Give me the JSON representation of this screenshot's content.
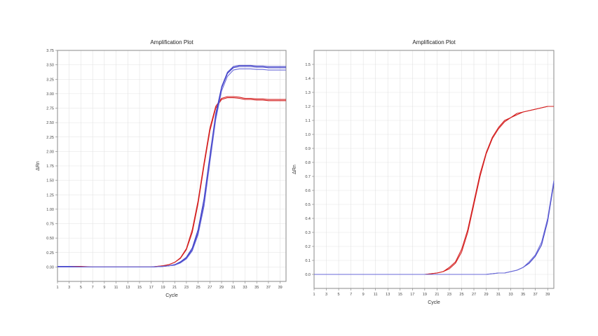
{
  "chart_data": [
    {
      "type": "line",
      "title": "Amplification Plot",
      "xlabel": "Cycle",
      "ylabel": "ΔRn",
      "xlim": [
        1,
        40
      ],
      "ylim": [
        -0.25,
        3.75
      ],
      "grid": true,
      "x_ticks": [
        "1",
        "3",
        "5",
        "7",
        "9",
        "11",
        "13",
        "15",
        "17",
        "19",
        "21",
        "23",
        "25",
        "27",
        "29",
        "31",
        "33",
        "35",
        "37",
        "39"
      ],
      "y_ticks": [
        "0.00",
        "0.25",
        "0.50",
        "0.75",
        "1.00",
        "1.25",
        "1.50",
        "1.75",
        "2.00",
        "2.25",
        "2.50",
        "2.75",
        "3.00",
        "3.25",
        "3.50",
        "3.75"
      ],
      "series": [
        {
          "color": "#d42020",
          "x": [
            1,
            3,
            5,
            7,
            9,
            11,
            13,
            15,
            17,
            19,
            20,
            21,
            22,
            23,
            24,
            25,
            26,
            27,
            28,
            29,
            30,
            31,
            32,
            33,
            34,
            35,
            36,
            37,
            38,
            39,
            40
          ],
          "values": [
            0.0,
            0.0,
            0.0,
            0.0,
            0.0,
            0.0,
            0.0,
            0.0,
            0.0,
            0.02,
            0.04,
            0.08,
            0.15,
            0.3,
            0.6,
            1.1,
            1.75,
            2.35,
            2.75,
            2.9,
            2.93,
            2.93,
            2.92,
            2.9,
            2.9,
            2.89,
            2.89,
            2.88,
            2.88,
            2.88,
            2.88
          ]
        },
        {
          "color": "#d42020",
          "x": [
            1,
            3,
            5,
            7,
            9,
            11,
            13,
            15,
            17,
            19,
            20,
            21,
            22,
            23,
            24,
            25,
            26,
            27,
            28,
            29,
            30,
            31,
            32,
            33,
            34,
            35,
            36,
            37,
            38,
            39,
            40
          ],
          "values": [
            0.01,
            0.01,
            0.01,
            0.0,
            0.0,
            0.0,
            0.0,
            0.0,
            0.0,
            0.02,
            0.04,
            0.08,
            0.16,
            0.32,
            0.65,
            1.15,
            1.8,
            2.4,
            2.78,
            2.92,
            2.95,
            2.95,
            2.94,
            2.92,
            2.92,
            2.91,
            2.91,
            2.9,
            2.9,
            2.9,
            2.9
          ]
        },
        {
          "color": "#4040c8",
          "x": [
            1,
            3,
            5,
            7,
            9,
            11,
            13,
            15,
            17,
            19,
            20,
            21,
            22,
            23,
            24,
            25,
            26,
            27,
            28,
            29,
            30,
            31,
            32,
            33,
            34,
            35,
            36,
            37,
            38,
            39,
            40
          ],
          "values": [
            0.0,
            0.0,
            0.0,
            0.0,
            0.0,
            0.0,
            0.0,
            0.0,
            0.0,
            0.01,
            0.02,
            0.04,
            0.08,
            0.15,
            0.3,
            0.6,
            1.1,
            1.85,
            2.6,
            3.1,
            3.35,
            3.45,
            3.47,
            3.47,
            3.47,
            3.46,
            3.46,
            3.45,
            3.45,
            3.45,
            3.45
          ]
        },
        {
          "color": "#4040c8",
          "x": [
            1,
            3,
            5,
            7,
            9,
            11,
            13,
            15,
            17,
            19,
            20,
            21,
            22,
            23,
            24,
            25,
            26,
            27,
            28,
            29,
            30,
            31,
            32,
            33,
            34,
            35,
            36,
            37,
            38,
            39,
            40
          ],
          "values": [
            0.01,
            0.01,
            0.0,
            0.0,
            0.0,
            0.0,
            0.0,
            0.0,
            0.0,
            0.01,
            0.02,
            0.04,
            0.09,
            0.17,
            0.33,
            0.65,
            1.18,
            1.92,
            2.65,
            3.12,
            3.37,
            3.47,
            3.49,
            3.49,
            3.49,
            3.48,
            3.48,
            3.47,
            3.47,
            3.47,
            3.47
          ]
        },
        {
          "color": "#6a6ad8",
          "x": [
            1,
            3,
            5,
            7,
            9,
            11,
            13,
            15,
            17,
            19,
            20,
            21,
            22,
            23,
            24,
            25,
            26,
            27,
            28,
            29,
            30,
            31,
            32,
            33,
            34,
            35,
            36,
            37,
            38,
            39,
            40
          ],
          "values": [
            0.0,
            0.0,
            0.0,
            0.0,
            0.0,
            0.0,
            0.0,
            0.0,
            0.0,
            0.01,
            0.02,
            0.03,
            0.07,
            0.14,
            0.28,
            0.56,
            1.05,
            1.8,
            2.55,
            3.05,
            3.3,
            3.41,
            3.43,
            3.43,
            3.43,
            3.42,
            3.42,
            3.41,
            3.41,
            3.41,
            3.41
          ]
        }
      ]
    },
    {
      "type": "line",
      "title": "Amplification Plot",
      "xlabel": "Cycle",
      "ylabel": "ΔRn",
      "xlim": [
        1,
        40
      ],
      "ylim": [
        -0.1,
        1.6
      ],
      "grid": true,
      "x_ticks": [
        "1",
        "3",
        "5",
        "7",
        "9",
        "11",
        "13",
        "15",
        "17",
        "19",
        "21",
        "23",
        "25",
        "27",
        "29",
        "31",
        "33",
        "35",
        "37",
        "39"
      ],
      "y_ticks": [
        "0.0",
        "0.1",
        "0.2",
        "0.3",
        "0.4",
        "0.5",
        "0.6",
        "0.7",
        "0.8",
        "0.9",
        "1.0",
        "1.1",
        "1.2",
        "1.3",
        "1.4",
        "1.5"
      ],
      "series": [
        {
          "color": "#d42020",
          "x": [
            1,
            3,
            5,
            7,
            9,
            11,
            13,
            15,
            17,
            19,
            21,
            22,
            23,
            24,
            25,
            26,
            27,
            28,
            29,
            30,
            31,
            32,
            33,
            34,
            35,
            36,
            37,
            38,
            39,
            40
          ],
          "values": [
            0.0,
            0.0,
            0.0,
            0.0,
            0.0,
            0.0,
            0.0,
            0.0,
            0.0,
            0.0,
            0.01,
            0.02,
            0.04,
            0.08,
            0.16,
            0.3,
            0.5,
            0.7,
            0.86,
            0.97,
            1.04,
            1.09,
            1.12,
            1.14,
            1.16,
            1.17,
            1.18,
            1.19,
            1.2,
            1.2
          ]
        },
        {
          "color": "#d42020",
          "x": [
            1,
            3,
            5,
            7,
            9,
            11,
            13,
            15,
            17,
            19,
            21,
            22,
            23,
            24,
            25,
            26,
            27,
            28,
            29,
            30,
            31,
            32,
            33,
            34,
            35,
            36,
            37,
            38,
            39,
            40
          ],
          "values": [
            0.0,
            0.0,
            0.0,
            0.0,
            0.0,
            0.0,
            0.0,
            0.0,
            0.0,
            0.0,
            0.01,
            0.02,
            0.05,
            0.09,
            0.18,
            0.32,
            0.52,
            0.72,
            0.87,
            0.98,
            1.05,
            1.1,
            1.12,
            1.15,
            1.16,
            1.17,
            1.18,
            1.19,
            1.2,
            1.2
          ]
        },
        {
          "color": "#4040c8",
          "x": [
            1,
            3,
            5,
            7,
            9,
            11,
            13,
            15,
            17,
            19,
            21,
            23,
            25,
            27,
            29,
            31,
            32,
            33,
            34,
            35,
            36,
            37,
            38,
            39,
            40
          ],
          "values": [
            0.0,
            0.0,
            0.0,
            0.0,
            0.0,
            0.0,
            0.0,
            0.0,
            0.0,
            0.0,
            0.0,
            0.0,
            0.0,
            0.0,
            0.0,
            0.01,
            0.01,
            0.02,
            0.03,
            0.05,
            0.08,
            0.13,
            0.21,
            0.38,
            0.65
          ]
        },
        {
          "color": "#6a6ad8",
          "x": [
            1,
            3,
            5,
            7,
            9,
            11,
            13,
            15,
            17,
            19,
            21,
            23,
            25,
            27,
            29,
            31,
            32,
            33,
            34,
            35,
            36,
            37,
            38,
            39,
            40
          ],
          "values": [
            0.0,
            0.0,
            0.0,
            0.0,
            0.0,
            0.0,
            0.0,
            0.0,
            0.0,
            0.0,
            0.0,
            0.0,
            0.0,
            0.0,
            0.0,
            0.01,
            0.01,
            0.02,
            0.03,
            0.05,
            0.09,
            0.14,
            0.23,
            0.4,
            0.67
          ]
        }
      ]
    }
  ]
}
